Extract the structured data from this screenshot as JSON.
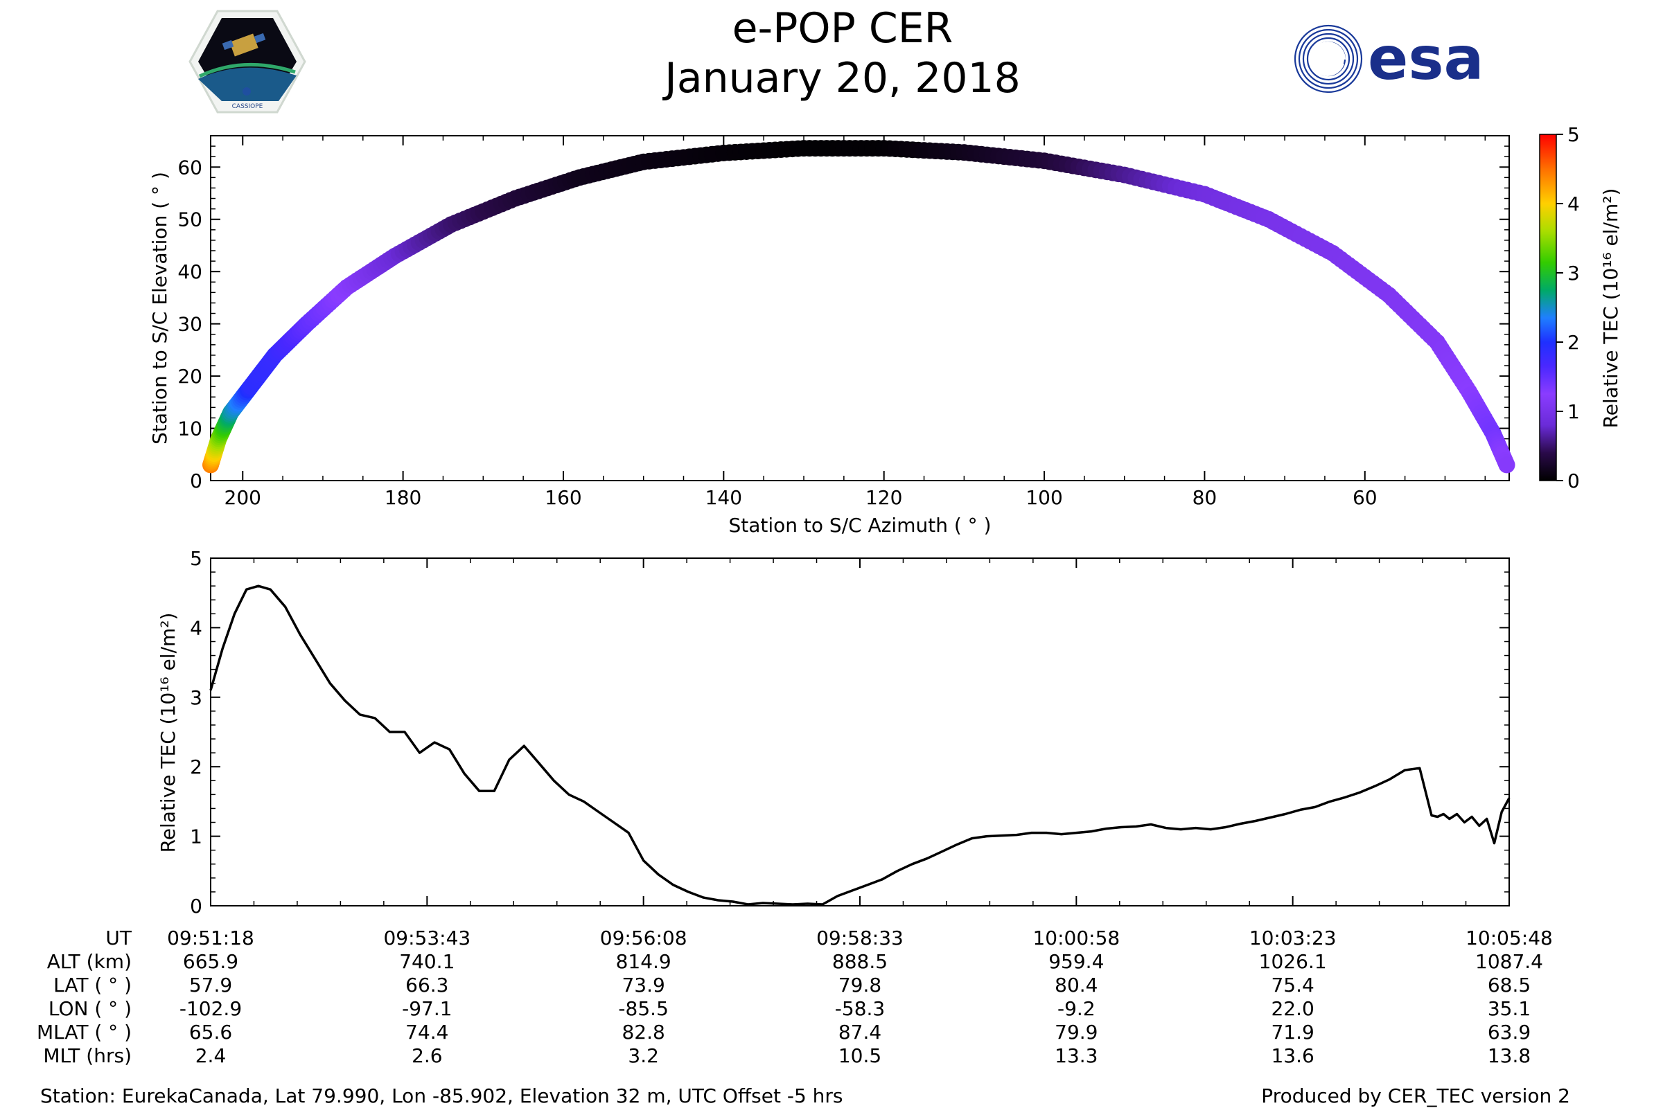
{
  "header": {
    "title": "e-POP CER",
    "date": "January 20, 2018",
    "esa_logo_text": "esa",
    "cassiope_logo_text": "CASSIOPE"
  },
  "colors": {
    "line": "#000000",
    "colormap": [
      "#000000",
      "#2a0a4a",
      "#6a2bd8",
      "#8040ff",
      "#2020ff",
      "#1f6fff",
      "#00aa55",
      "#44cc00",
      "#cccc00",
      "#ffaa00",
      "#ff5500",
      "#ff0000"
    ]
  },
  "chart_data": [
    {
      "type": "scatter",
      "title": "",
      "xlabel": "Station to S/C Azimuth ( ° )",
      "ylabel": "Station to S/C Elevation ( ° )",
      "xlim": [
        204,
        42
      ],
      "ylim": [
        0,
        66
      ],
      "xticks": [
        200,
        180,
        160,
        140,
        120,
        100,
        80,
        60
      ],
      "yticks": [
        0,
        10,
        20,
        30,
        40,
        50,
        60
      ],
      "points": [
        {
          "az": 204.0,
          "el": 3,
          "tec": 4.4
        },
        {
          "az": 203.0,
          "el": 8,
          "tec": 3.5
        },
        {
          "az": 201.5,
          "el": 13,
          "tec": 2.6
        },
        {
          "az": 199.0,
          "el": 18,
          "tec": 1.9
        },
        {
          "az": 196.0,
          "el": 24,
          "tec": 1.8
        },
        {
          "az": 192.0,
          "el": 30,
          "tec": 1.5
        },
        {
          "az": 187.0,
          "el": 37,
          "tec": 1.2
        },
        {
          "az": 181.0,
          "el": 43,
          "tec": 0.8
        },
        {
          "az": 174.0,
          "el": 49,
          "tec": 0.5
        },
        {
          "az": 166.0,
          "el": 54,
          "tec": 0.3
        },
        {
          "az": 158.0,
          "el": 58,
          "tec": 0.15
        },
        {
          "az": 150.0,
          "el": 61,
          "tec": 0.1
        },
        {
          "az": 140.0,
          "el": 62.7,
          "tec": 0.05
        },
        {
          "az": 130.0,
          "el": 63.6,
          "tec": 0.02
        },
        {
          "az": 120.0,
          "el": 63.6,
          "tec": 0.03
        },
        {
          "az": 110.0,
          "el": 62.8,
          "tec": 0.15
        },
        {
          "az": 100.0,
          "el": 61.2,
          "tec": 0.3
        },
        {
          "az": 90.0,
          "el": 58.5,
          "tec": 0.6
        },
        {
          "az": 80.0,
          "el": 54.8,
          "tec": 0.9
        },
        {
          "az": 72.0,
          "el": 50.0,
          "tec": 1.0
        },
        {
          "az": 64.0,
          "el": 43.5,
          "tec": 1.05
        },
        {
          "az": 57.0,
          "el": 35.5,
          "tec": 1.1
        },
        {
          "az": 51.0,
          "el": 26.5,
          "tec": 1.15
        },
        {
          "az": 47.0,
          "el": 17,
          "tec": 1.25
        },
        {
          "az": 44.0,
          "el": 9,
          "tec": 1.4
        },
        {
          "az": 42.3,
          "el": 3,
          "tec": 1.2
        }
      ],
      "colorbar": {
        "label": "Relative TEC (10¹⁶ el/m²)",
        "range": [
          0,
          5
        ],
        "ticks": [
          0,
          1,
          2,
          3,
          4,
          5
        ]
      }
    },
    {
      "type": "line",
      "title": "",
      "xlabel": "",
      "ylabel": "Relative TEC (10¹⁶ el/m²)",
      "ylim": [
        0,
        5
      ],
      "yticks": [
        0,
        1,
        2,
        3,
        4,
        5
      ],
      "x_seconds_range": [
        0,
        870
      ],
      "series": [
        {
          "name": "Relative TEC",
          "t": [
            0,
            8,
            16,
            24,
            32,
            40,
            50,
            60,
            70,
            80,
            90,
            100,
            110,
            120,
            130,
            140,
            150,
            160,
            170,
            180,
            190,
            200,
            210,
            220,
            230,
            240,
            250,
            260,
            270,
            280,
            290,
            300,
            310,
            320,
            330,
            340,
            350,
            360,
            370,
            380,
            390,
            400,
            410,
            420,
            430,
            440,
            450,
            460,
            470,
            480,
            490,
            500,
            510,
            520,
            530,
            540,
            550,
            560,
            570,
            580,
            590,
            600,
            610,
            620,
            630,
            640,
            650,
            660,
            670,
            680,
            690,
            700,
            710,
            720,
            730,
            740,
            750,
            760,
            770,
            780,
            790,
            800,
            810,
            818,
            822,
            826,
            830,
            835,
            840,
            845,
            850,
            855,
            860,
            865,
            870
          ],
          "values": [
            3.1,
            3.7,
            4.2,
            4.55,
            4.6,
            4.55,
            4.3,
            3.9,
            3.55,
            3.2,
            2.95,
            2.75,
            2.7,
            2.5,
            2.5,
            2.2,
            2.35,
            2.25,
            1.9,
            1.65,
            1.65,
            2.1,
            2.3,
            2.05,
            1.8,
            1.6,
            1.5,
            1.35,
            1.2,
            1.05,
            0.65,
            0.45,
            0.3,
            0.2,
            0.12,
            0.08,
            0.06,
            0.02,
            0.04,
            0.03,
            0.02,
            0.03,
            0.02,
            0.14,
            0.22,
            0.3,
            0.38,
            0.5,
            0.6,
            0.68,
            0.78,
            0.88,
            0.97,
            1.0,
            1.01,
            1.02,
            1.05,
            1.05,
            1.03,
            1.05,
            1.07,
            1.11,
            1.13,
            1.14,
            1.17,
            1.12,
            1.1,
            1.12,
            1.1,
            1.13,
            1.18,
            1.22,
            1.27,
            1.32,
            1.38,
            1.42,
            1.5,
            1.56,
            1.63,
            1.72,
            1.82,
            1.95,
            1.98,
            1.3,
            1.28,
            1.32,
            1.25,
            1.32,
            1.2,
            1.28,
            1.15,
            1.25,
            0.9,
            1.35,
            1.55
          ]
        }
      ],
      "table": {
        "row_labels": [
          "UT",
          "ALT (km)",
          "LAT ( ° )",
          "LON ( ° )",
          "MLAT ( ° )",
          "MLT (hrs)"
        ],
        "columns": [
          [
            "09:51:18",
            "665.9",
            "57.9",
            "-102.9",
            "65.6",
            "2.4"
          ],
          [
            "09:53:43",
            "740.1",
            "66.3",
            "-97.1",
            "74.4",
            "2.6"
          ],
          [
            "09:56:08",
            "814.9",
            "73.9",
            "-85.5",
            "82.8",
            "3.2"
          ],
          [
            "09:58:33",
            "888.5",
            "79.8",
            "-58.3",
            "87.4",
            "10.5"
          ],
          [
            "10:00:58",
            "959.4",
            "80.4",
            "-9.2",
            "79.9",
            "13.3"
          ],
          [
            "10:03:23",
            "1026.1",
            "75.4",
            "22.0",
            "71.9",
            "13.6"
          ],
          [
            "10:05:48",
            "1087.4",
            "68.5",
            "35.1",
            "63.9",
            "13.8"
          ]
        ]
      }
    }
  ],
  "footer": {
    "station": "Station: EurekaCanada, Lat 79.990, Lon -85.902, Elevation 32 m, UTC Offset -5 hrs",
    "produced_by": "Produced by CER_TEC version 2"
  }
}
